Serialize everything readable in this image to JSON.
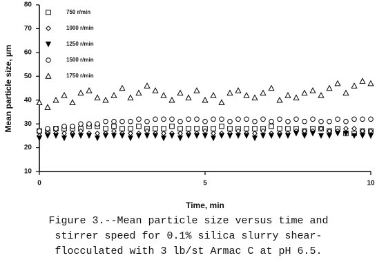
{
  "chart_data": {
    "type": "scatter",
    "xlabel": "Time, min",
    "ylabel": "Mean particle size, µm",
    "caption": [
      "Figure 3.--Mean particle size versus time and",
      "stirrer speed for 0.1% silica slurry shear-",
      "flocculated with 3 lb/st Armac C at pH 6.5."
    ],
    "x": [
      0,
      0.25,
      0.5,
      0.75,
      1,
      1.25,
      1.5,
      1.75,
      2,
      2.25,
      2.5,
      2.75,
      3,
      3.25,
      3.5,
      3.75,
      4,
      4.25,
      4.5,
      4.75,
      5,
      5.25,
      5.5,
      5.75,
      6,
      6.25,
      6.5,
      6.75,
      7,
      7.25,
      7.5,
      7.75,
      8,
      8.25,
      8.5,
      8.75,
      9,
      9.25,
      9.5,
      9.75,
      10
    ],
    "series": [
      {
        "name": "750 r/min",
        "color": "#000000",
        "marker": "square",
        "values": [
          27,
          27,
          28,
          28,
          28,
          28,
          29,
          29,
          28,
          29,
          28,
          28,
          29,
          28,
          28,
          28,
          29,
          28,
          28,
          28,
          28,
          28,
          29,
          28,
          28,
          28,
          28,
          28,
          29,
          28,
          28,
          28,
          27,
          28,
          28,
          27,
          28,
          26,
          26,
          27,
          27
        ]
      },
      {
        "name": "1000 r/min",
        "color": "#000000",
        "marker": "diamond",
        "values": [
          25,
          26,
          26,
          26,
          26,
          27,
          26,
          26,
          26,
          27,
          26,
          26,
          26,
          27,
          26,
          26,
          26,
          26,
          26,
          26,
          27,
          26,
          26,
          26,
          27,
          26,
          26,
          27,
          26,
          26,
          26,
          27,
          27,
          27,
          28,
          27,
          27,
          28,
          28,
          27,
          27
        ]
      },
      {
        "name": "1250 r/min",
        "color": "#000000",
        "marker": "triangle-down-filled",
        "values": [
          24,
          25,
          25,
          24,
          25,
          25,
          25,
          24,
          25,
          25,
          25,
          24,
          25,
          25,
          25,
          24,
          25,
          24,
          25,
          25,
          25,
          24,
          25,
          25,
          25,
          25,
          24,
          25,
          25,
          25,
          25,
          26,
          25,
          26,
          25,
          25,
          26,
          26,
          25,
          25,
          25
        ]
      },
      {
        "name": "1500 r/min",
        "color": "#000000",
        "marker": "circle",
        "values": [
          27,
          28,
          28,
          29,
          29,
          30,
          30,
          30,
          31,
          31,
          31,
          31,
          32,
          31,
          32,
          32,
          32,
          31,
          32,
          32,
          31,
          32,
          32,
          31,
          32,
          32,
          31,
          32,
          31,
          32,
          31,
          32,
          31,
          32,
          31,
          31,
          32,
          31,
          32,
          32,
          32
        ]
      },
      {
        "name": "1750 r/min",
        "color": "#000000",
        "marker": "triangle",
        "values": [
          39,
          37,
          40,
          42,
          39,
          43,
          44,
          41,
          40,
          42,
          45,
          41,
          43,
          46,
          44,
          42,
          40,
          43,
          41,
          44,
          40,
          42,
          39,
          43,
          44,
          42,
          41,
          43,
          45,
          40,
          42,
          41,
          43,
          44,
          42,
          45,
          47,
          43,
          46,
          48,
          47
        ]
      }
    ],
    "xlim": [
      0,
      10
    ],
    "xticks": [
      0,
      5,
      10
    ],
    "ylim": [
      10,
      80
    ],
    "yticks": [
      10,
      20,
      30,
      40,
      50,
      60,
      70,
      80
    ],
    "legend": "upper-left"
  }
}
